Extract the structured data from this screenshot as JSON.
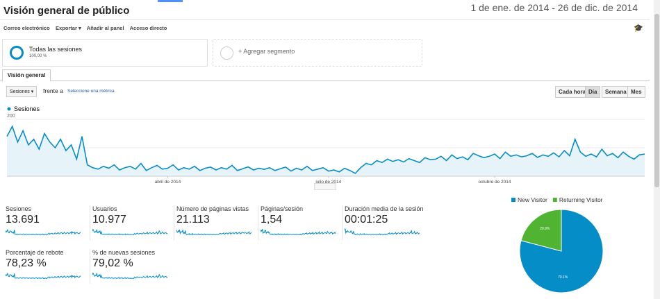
{
  "header": {
    "title": "Visión general de público",
    "date_range": "1 de ene. de 2014 - 26 de dic. de 2014"
  },
  "toolbar": [
    "Correo electrónico",
    "Exportar",
    "Añadir al panel",
    "Acceso directo"
  ],
  "segments": {
    "active": {
      "name": "Todas las sesiones",
      "percent": "100,00 %"
    },
    "add": "+ Agregar segmento"
  },
  "tab": "Visión general",
  "controls": {
    "metric": "Sesiones",
    "versus": "frente a",
    "select_metric": "Seleccione una métrica",
    "granularity": [
      "Cada hora",
      "Día",
      "Semana",
      "Mes"
    ]
  },
  "chart_data": [
    {
      "type": "line",
      "series": [
        {
          "name": "Sesiones",
          "color": "#058dc7",
          "values": [
            140,
            175,
            120,
            160,
            110,
            130,
            95,
            150,
            120,
            100,
            130,
            90,
            110,
            60,
            140,
            40,
            30,
            25,
            35,
            28,
            40,
            22,
            30,
            35,
            25,
            45,
            20,
            30,
            38,
            25,
            28,
            40,
            22,
            30,
            25,
            35,
            20,
            28,
            32,
            22,
            30,
            25,
            38,
            20,
            26,
            33,
            22,
            28,
            24,
            30,
            20,
            26,
            32,
            18,
            28,
            22,
            35,
            20,
            25,
            30,
            18,
            22,
            15,
            28,
            20,
            10,
            30,
            45,
            40,
            55,
            48,
            60,
            52,
            58,
            50,
            62,
            55,
            48,
            65,
            58,
            60,
            70,
            55,
            75,
            62,
            68,
            58,
            80,
            72,
            65,
            70,
            78,
            62,
            85,
            70,
            75,
            68,
            72,
            80,
            66,
            75,
            70,
            82,
            68,
            90,
            72,
            130,
            85,
            70,
            78,
            68,
            95,
            72,
            80,
            65,
            85,
            70,
            60,
            75,
            78
          ]
        }
      ],
      "xlim": [
        0,
        119
      ],
      "xticks": [
        {
          "value": 30,
          "label": "abril de 2014"
        },
        {
          "value": 60,
          "label": "julio de 2014"
        },
        {
          "value": 91,
          "label": "octubre de 2014"
        }
      ],
      "ylim": [
        0,
        200
      ],
      "yticks": [
        100,
        200
      ],
      "grid": true
    },
    {
      "type": "pie",
      "categories": [
        "New Visitor",
        "Returning Visitor"
      ],
      "values": [
        79.1,
        20.9
      ],
      "value_labels": [
        "79.1%",
        "20.9%"
      ],
      "colors": [
        "#058dc7",
        "#50b432"
      ]
    }
  ],
  "metrics": [
    {
      "name": "Sesiones",
      "value": "13.691"
    },
    {
      "name": "Usuarios",
      "value": "10.977"
    },
    {
      "name": "Número de páginas vistas",
      "value": "21.113"
    },
    {
      "name": "Páginas/sesión",
      "value": "1,54"
    },
    {
      "name": "Duración media de la sesión",
      "value": "00:01:25"
    },
    {
      "name": "Porcentaje de rebote",
      "value": "78,23 %"
    },
    {
      "name": "% de nuevas sesiones",
      "value": "79,02 %"
    }
  ]
}
